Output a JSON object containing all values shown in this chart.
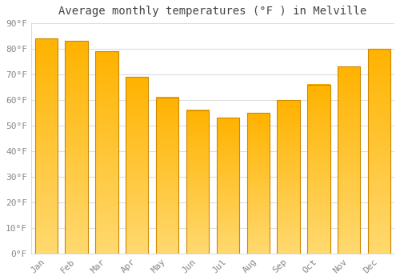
{
  "title": "Average monthly temperatures (°F ) in Melville",
  "months": [
    "Jan",
    "Feb",
    "Mar",
    "Apr",
    "May",
    "Jun",
    "Jul",
    "Aug",
    "Sep",
    "Oct",
    "Nov",
    "Dec"
  ],
  "values": [
    84,
    83,
    79,
    69,
    61,
    56,
    53,
    55,
    60,
    66,
    73,
    80
  ],
  "bar_color_face": "#FFB300",
  "bar_color_edge": "#CC8800",
  "bar_color_light": "#FFD970",
  "ylim": [
    0,
    90
  ],
  "yticks": [
    0,
    10,
    20,
    30,
    40,
    50,
    60,
    70,
    80,
    90
  ],
  "ytick_labels": [
    "0°F",
    "10°F",
    "20°F",
    "30°F",
    "40°F",
    "50°F",
    "60°F",
    "70°F",
    "80°F",
    "90°F"
  ],
  "background_color": "#FFFFFF",
  "grid_color": "#DDDDDD",
  "title_fontsize": 10,
  "tick_fontsize": 8,
  "title_color": "#444444",
  "tick_color": "#888888",
  "bar_width": 0.75
}
